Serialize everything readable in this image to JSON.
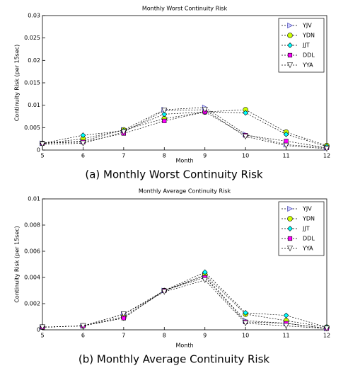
{
  "chart_data": [
    {
      "type": "line",
      "title": "Monthly Worst Continuity Risk",
      "x_label": "Month",
      "y_label": "Continuity Risk (per 15sec)",
      "caption": "(a)  Monthly Worst  Continuity Risk",
      "x": [
        5,
        6,
        7,
        8,
        9,
        10,
        11,
        12
      ],
      "xlim": [
        5,
        12
      ],
      "xticks": [
        5,
        6,
        7,
        8,
        9,
        10,
        11,
        12
      ],
      "ylim": [
        0,
        0.03
      ],
      "yticks": [
        0,
        0.005,
        0.01,
        0.015,
        0.02,
        0.025,
        0.03
      ],
      "legend": "upper right",
      "series": [
        {
          "name": "YJV",
          "color": "#ccccff",
          "marker": "triangle-right",
          "values": [
            0.0015,
            0.002,
            0.0045,
            0.009,
            0.0095,
            0.0035,
            0.0012,
            0.0005
          ]
        },
        {
          "name": "YDN",
          "color": "#ccff00",
          "marker": "circle",
          "values": [
            0.0015,
            0.0025,
            0.0045,
            0.007,
            0.0085,
            0.009,
            0.004,
            0.001
          ]
        },
        {
          "name": "JJT",
          "color": "#00ffff",
          "marker": "diamond",
          "values": [
            0.0015,
            0.0033,
            0.0043,
            0.008,
            0.0085,
            0.0083,
            0.0035,
            0.0008
          ]
        },
        {
          "name": "DDL",
          "color": "#ff00ff",
          "marker": "square",
          "values": [
            0.0015,
            0.0018,
            0.0037,
            0.0065,
            0.0085,
            0.0033,
            0.002,
            0.0005
          ]
        },
        {
          "name": "YYA",
          "color": "#ffffff",
          "marker": "triangle-down",
          "values": [
            0.0013,
            0.0015,
            0.004,
            0.0088,
            0.009,
            0.003,
            0.001,
            0.0003
          ]
        }
      ]
    },
    {
      "type": "line",
      "title": "Monthly Average Continuity Risk",
      "x_label": "Month",
      "y_label": "Continuity Risk (per 15sec)",
      "caption": "(b)  Monthly Average Continuity Risk",
      "x": [
        5,
        6,
        7,
        8,
        9,
        10,
        11,
        12
      ],
      "xlim": [
        5,
        12
      ],
      "xticks": [
        5,
        6,
        7,
        8,
        9,
        10,
        11,
        12
      ],
      "ylim": [
        0,
        0.01
      ],
      "yticks": [
        0,
        0.002,
        0.004,
        0.006,
        0.008,
        0.01
      ],
      "legend": "upper right",
      "series": [
        {
          "name": "YJV",
          "color": "#ccccff",
          "marker": "triangle-right",
          "values": [
            0.0002,
            0.0003,
            0.0012,
            0.003,
            0.0041,
            0.0007,
            0.0005,
            0.0001
          ]
        },
        {
          "name": "YDN",
          "color": "#ccff00",
          "marker": "circle",
          "values": [
            0.0002,
            0.0003,
            0.001,
            0.003,
            0.0042,
            0.0012,
            0.0007,
            0.0002
          ]
        },
        {
          "name": "JJT",
          "color": "#00ffff",
          "marker": "diamond",
          "values": [
            0.0002,
            0.0003,
            0.0009,
            0.003,
            0.0044,
            0.0013,
            0.0011,
            0.0002
          ]
        },
        {
          "name": "DDL",
          "color": "#ff00ff",
          "marker": "square",
          "values": [
            0.0002,
            0.0003,
            0.0009,
            0.003,
            0.004,
            0.0006,
            0.0005,
            0.0001
          ]
        },
        {
          "name": "YYA",
          "color": "#ffffff",
          "marker": "triangle-down",
          "values": [
            0.0002,
            0.0003,
            0.0012,
            0.0029,
            0.0038,
            0.0005,
            0.0003,
            0.0001
          ]
        }
      ]
    }
  ]
}
